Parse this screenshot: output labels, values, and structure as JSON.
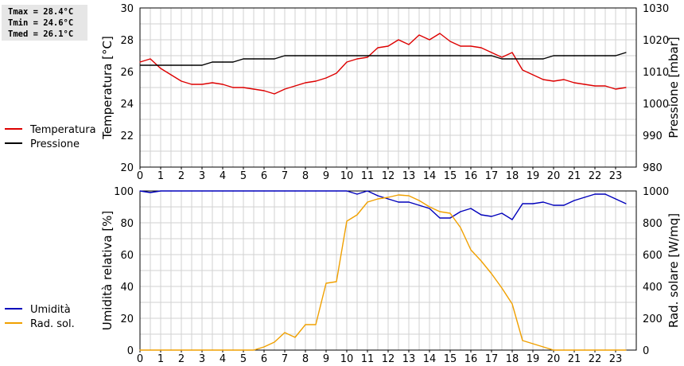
{
  "stats": {
    "lines": [
      "Tmax = 28.4°C",
      "Tmin = 24.6°C",
      "Tmed = 26.1°C"
    ]
  },
  "chart_data": [
    {
      "type": "line",
      "x_ticks": [
        "0",
        "1",
        "2",
        "3",
        "4",
        "5",
        "6",
        "7",
        "8",
        "9",
        "10",
        "11",
        "12",
        "13",
        "14",
        "15",
        "16",
        "17",
        "18",
        "19",
        "20",
        "21",
        "22",
        "23"
      ],
      "xlim": [
        0,
        24
      ],
      "y_left": {
        "label": "Temperatura [°C]",
        "lim": [
          20,
          30
        ],
        "ticks": [
          20,
          22,
          24,
          26,
          28,
          30
        ]
      },
      "y_right": {
        "label": "Pressione [mbar]",
        "lim": [
          980,
          1030
        ],
        "ticks": [
          980,
          990,
          1000,
          1010,
          1020,
          1030
        ]
      },
      "grid": true,
      "legend": "left",
      "series": [
        {
          "name": "Temperatura",
          "axis": "left",
          "color": "#dd0000",
          "x": [
            0,
            0.5,
            1,
            1.5,
            2,
            2.5,
            3,
            3.5,
            4,
            4.5,
            5,
            5.5,
            6,
            6.5,
            7,
            7.5,
            8,
            8.5,
            9,
            9.5,
            10,
            10.5,
            11,
            11.5,
            12,
            12.5,
            13,
            13.5,
            14,
            14.5,
            15,
            15.5,
            16,
            16.5,
            17,
            17.5,
            18,
            18.5,
            19,
            19.5,
            20,
            20.5,
            21,
            21.5,
            22,
            22.5,
            23,
            23.5
          ],
          "y": [
            26.6,
            26.8,
            26.2,
            25.8,
            25.4,
            25.2,
            25.2,
            25.3,
            25.2,
            25.0,
            25.0,
            24.9,
            24.8,
            24.6,
            24.9,
            25.1,
            25.3,
            25.4,
            25.6,
            25.9,
            26.6,
            26.8,
            26.9,
            27.5,
            27.6,
            28.0,
            27.7,
            28.3,
            28.0,
            28.4,
            27.9,
            27.6,
            27.6,
            27.5,
            27.2,
            26.9,
            27.2,
            26.1,
            25.8,
            25.5,
            25.4,
            25.5,
            25.3,
            25.2,
            25.1,
            25.1,
            24.9,
            25.0
          ]
        },
        {
          "name": "Pressione",
          "axis": "right",
          "color": "#000000",
          "x": [
            0,
            0.5,
            1,
            1.5,
            2,
            2.5,
            3,
            3.5,
            4,
            4.5,
            5,
            5.5,
            6,
            6.5,
            7,
            7.5,
            8,
            8.5,
            9,
            9.5,
            10,
            10.5,
            11,
            11.5,
            12,
            12.5,
            13,
            13.5,
            14,
            14.5,
            15,
            15.5,
            16,
            16.5,
            17,
            17.5,
            18,
            18.5,
            19,
            19.5,
            20,
            20.5,
            21,
            21.5,
            22,
            22.5,
            23,
            23.5
          ],
          "y": [
            1012,
            1012,
            1012,
            1012,
            1012,
            1012,
            1012,
            1013,
            1013,
            1013,
            1014,
            1014,
            1014,
            1014,
            1015,
            1015,
            1015,
            1015,
            1015,
            1015,
            1015,
            1015,
            1015,
            1015,
            1015,
            1015,
            1015,
            1015,
            1015,
            1015,
            1015,
            1015,
            1015,
            1015,
            1015,
            1014,
            1014,
            1014,
            1014,
            1014,
            1015,
            1015,
            1015,
            1015,
            1015,
            1015,
            1015,
            1016
          ]
        }
      ]
    },
    {
      "type": "line",
      "x_ticks": [
        "0",
        "1",
        "2",
        "3",
        "4",
        "5",
        "6",
        "7",
        "8",
        "9",
        "10",
        "11",
        "12",
        "13",
        "14",
        "15",
        "16",
        "17",
        "18",
        "19",
        "20",
        "21",
        "22",
        "23"
      ],
      "xlim": [
        0,
        24
      ],
      "y_left": {
        "label": "Umidità relativa [%]",
        "lim": [
          0,
          100
        ],
        "ticks": [
          0,
          20,
          40,
          60,
          80,
          100
        ]
      },
      "y_right": {
        "label": "Rad. solare [W/mq]",
        "lim": [
          0,
          1000
        ],
        "ticks": [
          0,
          200,
          400,
          600,
          800,
          1000
        ]
      },
      "grid": true,
      "legend": "left",
      "series": [
        {
          "name": "Umidità",
          "axis": "left",
          "color": "#0000bb",
          "x": [
            0,
            0.5,
            1,
            1.5,
            2,
            2.5,
            3,
            3.5,
            4,
            4.5,
            5,
            5.5,
            6,
            6.5,
            7,
            7.5,
            8,
            8.5,
            9,
            9.5,
            10,
            10.5,
            11,
            11.5,
            12,
            12.5,
            13,
            13.5,
            14,
            14.5,
            15,
            15.5,
            16,
            16.5,
            17,
            17.5,
            18,
            18.5,
            19,
            19.5,
            20,
            20.5,
            21,
            21.5,
            22,
            22.5,
            23,
            23.5
          ],
          "y": [
            100,
            99,
            100,
            100,
            100,
            100,
            100,
            100,
            100,
            100,
            100,
            100,
            100,
            100,
            100,
            100,
            100,
            100,
            100,
            100,
            100,
            98,
            100,
            97,
            95,
            93,
            93,
            91,
            89,
            83,
            83,
            87,
            89,
            85,
            84,
            86,
            82,
            92,
            92,
            93,
            91,
            91,
            94,
            96,
            98,
            98,
            95,
            92
          ]
        },
        {
          "name": "Rad. sol.",
          "axis": "right",
          "color": "#f0a000",
          "x": [
            0,
            0.5,
            1,
            1.5,
            2,
            2.5,
            3,
            3.5,
            4,
            4.5,
            5,
            5.5,
            6,
            6.5,
            7,
            7.5,
            8,
            8.5,
            9,
            9.5,
            10,
            10.5,
            11,
            11.5,
            12,
            12.5,
            13,
            13.5,
            14,
            14.5,
            15,
            15.5,
            16,
            16.5,
            17,
            17.5,
            18,
            18.5,
            19,
            19.5,
            20,
            20.5,
            21,
            21.5,
            22,
            22.5,
            23,
            23.5
          ],
          "y": [
            0,
            0,
            0,
            0,
            0,
            0,
            0,
            0,
            0,
            0,
            0,
            0,
            20,
            50,
            110,
            80,
            160,
            160,
            420,
            430,
            810,
            850,
            930,
            950,
            960,
            975,
            970,
            940,
            900,
            870,
            860,
            770,
            630,
            560,
            480,
            390,
            290,
            60,
            40,
            20,
            0,
            0,
            0,
            0,
            0,
            0,
            0,
            0
          ]
        }
      ]
    }
  ]
}
